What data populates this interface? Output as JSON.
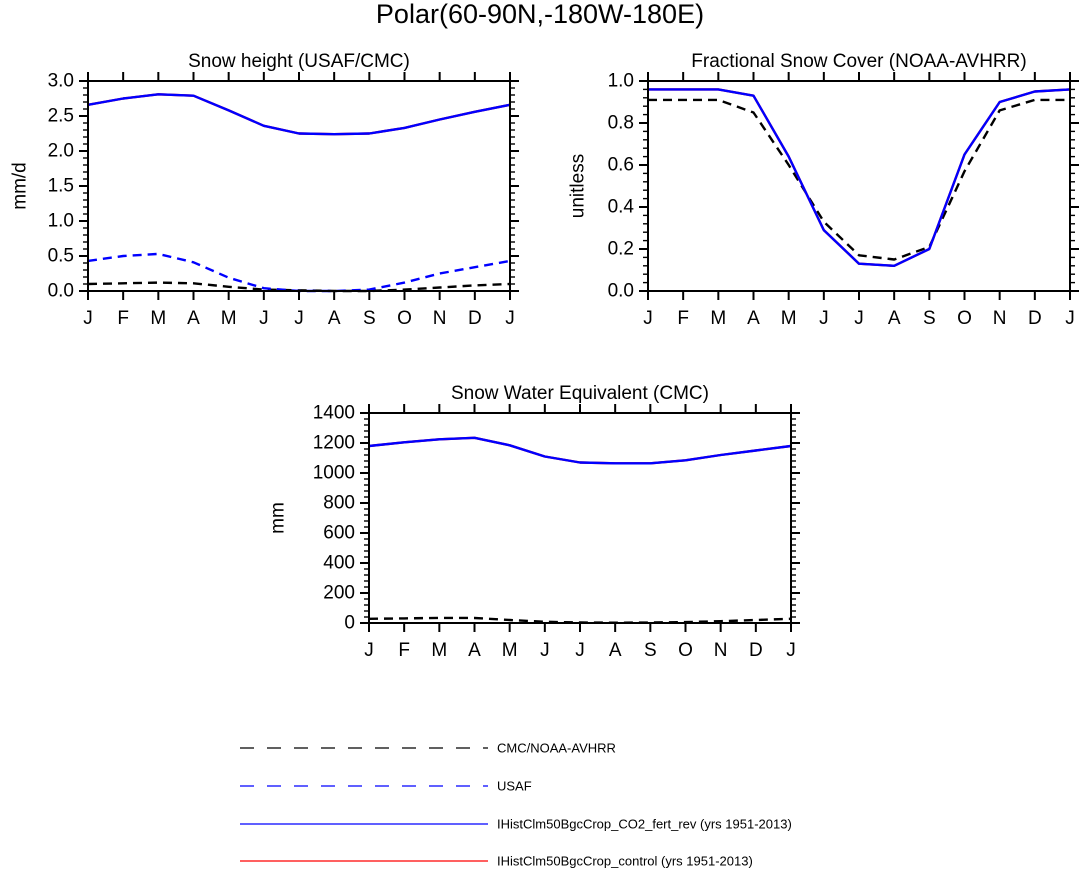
{
  "figure": {
    "title": "Polar(60-90N,-180W-180E)"
  },
  "legend": {
    "entries": [
      {
        "label": "CMC/NOAA-AVHRR",
        "color": "#000000",
        "dash": "dashed"
      },
      {
        "label": "USAF",
        "color": "#0000ff",
        "dash": "dashed"
      },
      {
        "label": "IHistClm50BgcCrop_CO2_fert_rev (yrs 1951-2013)",
        "color": "#0000ff",
        "dash": "solid"
      },
      {
        "label": "IHistClm50BgcCrop_control (yrs 1951-2013)",
        "color": "#ff0000",
        "dash": "solid"
      }
    ]
  },
  "chart_data": [
    {
      "type": "line",
      "title": "Snow height (USAF/CMC)",
      "xlabel": "",
      "ylabel": "mm/d",
      "categories": [
        "J",
        "F",
        "M",
        "A",
        "M",
        "J",
        "J",
        "A",
        "S",
        "O",
        "N",
        "D",
        "J"
      ],
      "ylim": [
        0,
        3
      ],
      "yticks": [
        0,
        0.5,
        1,
        1.5,
        2,
        2.5,
        3
      ],
      "ytick_labels": [
        "0.0",
        "0.5",
        "1.0",
        "1.5",
        "2.0",
        "2.5",
        "3.0"
      ],
      "series": [
        {
          "name": "CMC/NOAA-AVHRR",
          "color": "#000000",
          "dash": "dashed",
          "values": [
            0.1,
            0.11,
            0.12,
            0.11,
            0.06,
            0.02,
            0.01,
            0.0,
            0.0,
            0.02,
            0.05,
            0.08,
            0.1
          ]
        },
        {
          "name": "USAF",
          "color": "#0000ff",
          "dash": "dashed",
          "values": [
            0.43,
            0.5,
            0.53,
            0.41,
            0.19,
            0.04,
            0.0,
            0.0,
            0.02,
            0.12,
            0.25,
            0.34,
            0.43
          ]
        },
        {
          "name": "IHistClm50BgcCrop_control (yrs 1951-2013)",
          "color": "#ff0000",
          "dash": "solid",
          "values": [
            2.66,
            2.75,
            2.81,
            2.79,
            2.58,
            2.36,
            2.25,
            2.24,
            2.25,
            2.33,
            2.45,
            2.56,
            2.66
          ]
        },
        {
          "name": "IHistClm50BgcCrop_CO2_fert_rev (yrs 1951-2013)",
          "color": "#0000ff",
          "dash": "solid",
          "values": [
            2.66,
            2.75,
            2.81,
            2.79,
            2.58,
            2.36,
            2.25,
            2.24,
            2.25,
            2.33,
            2.45,
            2.56,
            2.66
          ]
        }
      ]
    },
    {
      "type": "line",
      "title": "Fractional Snow Cover (NOAA-AVHRR)",
      "xlabel": "",
      "ylabel": "unitless",
      "categories": [
        "J",
        "F",
        "M",
        "A",
        "M",
        "J",
        "J",
        "A",
        "S",
        "O",
        "N",
        "D",
        "J"
      ],
      "ylim": [
        0,
        1
      ],
      "yticks": [
        0,
        0.2,
        0.4,
        0.6,
        0.8,
        1.0
      ],
      "ytick_labels": [
        "0.0",
        "0.2",
        "0.4",
        "0.6",
        "0.8",
        "1.0"
      ],
      "series": [
        {
          "name": "CMC/NOAA-AVHRR",
          "color": "#000000",
          "dash": "dashed",
          "values": [
            0.91,
            0.91,
            0.91,
            0.85,
            0.6,
            0.33,
            0.17,
            0.15,
            0.21,
            0.57,
            0.86,
            0.91,
            0.91
          ]
        },
        {
          "name": "IHistClm50BgcCrop_control (yrs 1951-2013)",
          "color": "#ff0000",
          "dash": "solid",
          "values": [
            0.96,
            0.96,
            0.96,
            0.93,
            0.64,
            0.29,
            0.13,
            0.12,
            0.2,
            0.65,
            0.9,
            0.95,
            0.96
          ]
        },
        {
          "name": "IHistClm50BgcCrop_CO2_fert_rev (yrs 1951-2013)",
          "color": "#0000ff",
          "dash": "solid",
          "values": [
            0.96,
            0.96,
            0.96,
            0.93,
            0.64,
            0.29,
            0.13,
            0.12,
            0.2,
            0.65,
            0.9,
            0.95,
            0.96
          ]
        }
      ]
    },
    {
      "type": "line",
      "title": "Snow Water Equivalent (CMC)",
      "xlabel": "",
      "ylabel": "mm",
      "categories": [
        "J",
        "F",
        "M",
        "A",
        "M",
        "J",
        "J",
        "A",
        "S",
        "O",
        "N",
        "D",
        "J"
      ],
      "ylim": [
        0,
        1400
      ],
      "yticks": [
        0,
        200,
        400,
        600,
        800,
        1000,
        1200,
        1400
      ],
      "ytick_labels": [
        "0",
        "200",
        "400",
        "600",
        "800",
        "1000",
        "1200",
        "1400"
      ],
      "series": [
        {
          "name": "CMC/NOAA-AVHRR",
          "color": "#000000",
          "dash": "dashed",
          "values": [
            28,
            31,
            34,
            33,
            20,
            8,
            3,
            2,
            3,
            6,
            12,
            20,
            28
          ]
        },
        {
          "name": "IHistClm50BgcCrop_control (yrs 1951-2013)",
          "color": "#ff0000",
          "dash": "solid",
          "values": [
            1180,
            1205,
            1225,
            1235,
            1185,
            1110,
            1070,
            1065,
            1065,
            1085,
            1120,
            1150,
            1180
          ]
        },
        {
          "name": "IHistClm50BgcCrop_CO2_fert_rev (yrs 1951-2013)",
          "color": "#0000ff",
          "dash": "solid",
          "values": [
            1180,
            1205,
            1225,
            1235,
            1185,
            1110,
            1070,
            1065,
            1065,
            1085,
            1120,
            1150,
            1180
          ]
        }
      ]
    }
  ]
}
